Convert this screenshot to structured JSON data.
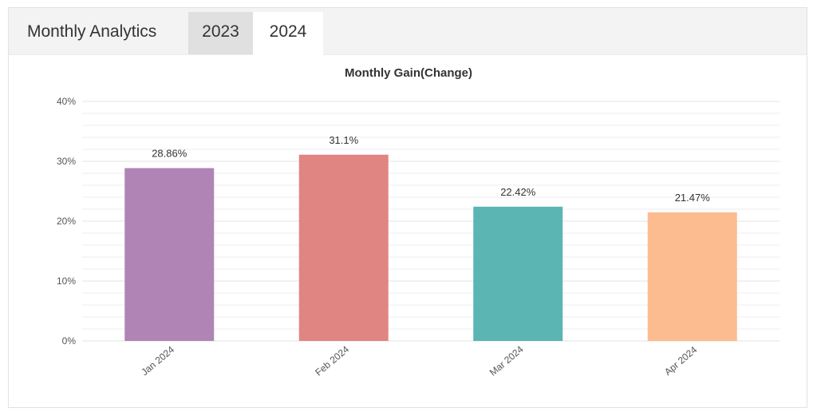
{
  "header": {
    "title": "Monthly Analytics",
    "tabs": [
      {
        "label": "2023",
        "active": false
      },
      {
        "label": "2024",
        "active": true
      }
    ]
  },
  "colors": {
    "header_bg": "#f3f3f3",
    "tab_inactive_bg": "#e0e0e0",
    "tab_active_bg": "#ffffff",
    "grid": "#eeeeee",
    "bar_colors": [
      "#b084b5",
      "#e08582",
      "#5bb5b3",
      "#fdbb90"
    ]
  },
  "chart_data": {
    "type": "bar",
    "title": "Monthly Gain(Change)",
    "xlabel": "",
    "ylabel": "",
    "categories": [
      "Jan 2024",
      "Feb 2024",
      "Mar 2024",
      "Apr 2024"
    ],
    "values": [
      28.86,
      31.1,
      22.42,
      21.47
    ],
    "data_labels": [
      "28.86%",
      "31.1%",
      "22.42%",
      "21.47%"
    ],
    "ylim": [
      0,
      40
    ],
    "yticks": [
      0,
      10,
      20,
      30,
      40
    ],
    "ytick_labels": [
      "0%",
      "10%",
      "20%",
      "30%",
      "40%"
    ],
    "grid": true,
    "legend": "none"
  }
}
